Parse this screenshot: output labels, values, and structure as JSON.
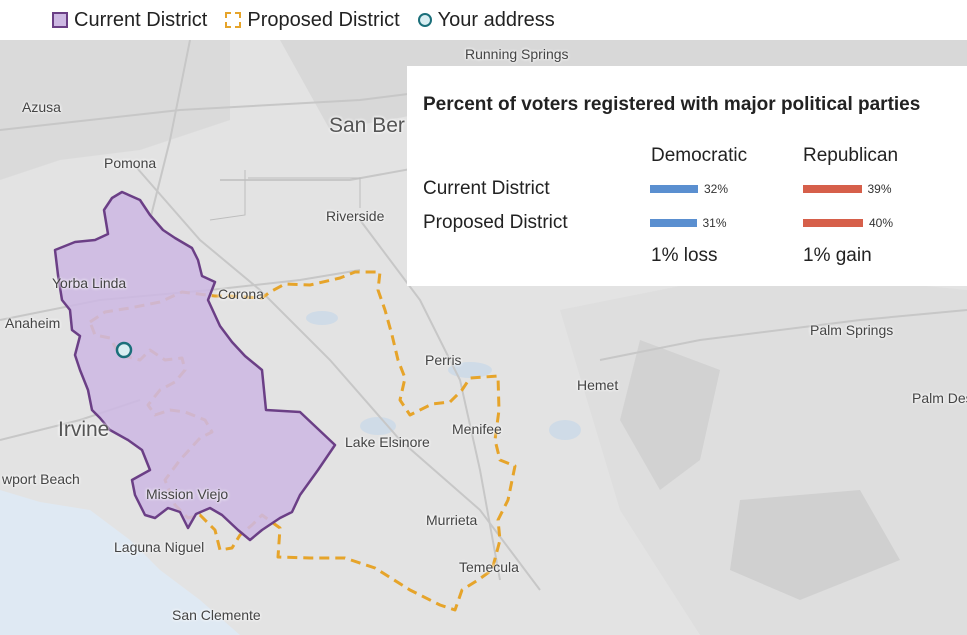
{
  "legend": {
    "current": "Current District",
    "proposed": "Proposed District",
    "address": "Your address"
  },
  "colors": {
    "current_fill": "#cdb8e3",
    "current_stroke": "#6b3f86",
    "proposed_stroke": "#e6a42a",
    "democratic": "#5a8fd0",
    "republican": "#d65f4a",
    "map_background": "#e3e3e3",
    "water": "#dfe9f3"
  },
  "places": {
    "running_springs": "Running Springs",
    "azusa": "Azusa",
    "san_bernardino": "San Ber",
    "pomona": "Pomona",
    "riverside": "Riverside",
    "yorba_linda": "Yorba Linda",
    "corona": "Corona",
    "anaheim": "Anaheim",
    "palm_springs": "Palm Springs",
    "perris": "Perris",
    "hemet": "Hemet",
    "palm_desert": "Palm Des",
    "irvine": "Irvine",
    "lake_elsinore": "Lake Elsinore",
    "menifee": "Menifee",
    "newport_beach": "wport Beach",
    "mission_viejo": "Mission Viejo",
    "murrieta": "Murrieta",
    "laguna_niguel": "Laguna Niguel",
    "temecula": "Temecula",
    "san_clemente": "San Clemente"
  },
  "panel": {
    "title": "Percent of voters registered with major political parties",
    "columns": [
      "Democratic",
      "Republican"
    ],
    "rows": [
      {
        "label": "Current District",
        "democratic": "32%",
        "republican": "39%",
        "dem_value": 32,
        "rep_value": 39
      },
      {
        "label": "Proposed District",
        "democratic": "31%",
        "republican": "40%",
        "dem_value": 31,
        "rep_value": 40
      }
    ],
    "changes": [
      "1% loss",
      "1% gain"
    ]
  }
}
